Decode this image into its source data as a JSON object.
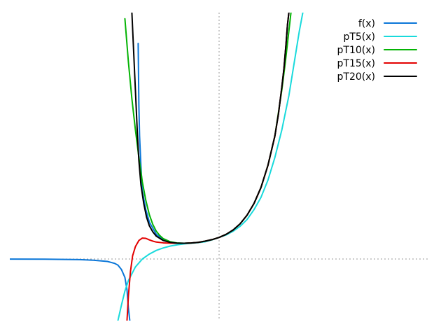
{
  "chart_data": {
    "type": "line",
    "title": "",
    "xlabel": "",
    "ylabel": "",
    "xlim": [
      -3,
      3
    ],
    "ylim": [
      -1,
      4
    ],
    "grid": false,
    "axes_style": "dotted-zero-lines",
    "legend_position": "top-right",
    "series": [
      {
        "name": "f(x)",
        "color": "#0a76d8",
        "points": [
          [
            -3.0,
            -0.001
          ],
          [
            -2.5,
            -0.003
          ],
          [
            -2.0,
            -0.01
          ],
          [
            -1.8,
            -0.02
          ],
          [
            -1.6,
            -0.04
          ],
          [
            -1.5,
            -0.07
          ],
          [
            -1.45,
            -0.1
          ],
          [
            -1.4,
            -0.17
          ],
          [
            -1.35,
            -0.3
          ],
          [
            -1.32,
            -0.5
          ],
          [
            -1.3,
            -0.8
          ],
          [
            -1.28,
            -1.0
          ]
        ]
      },
      {
        "name": "f(x)",
        "color": "#0a76d8",
        "points": [
          [
            -1.16,
            3.5
          ],
          [
            -1.15,
            2.5
          ],
          [
            -1.14,
            2.0
          ],
          [
            -1.12,
            1.5
          ],
          [
            -1.1,
            1.1
          ],
          [
            -1.05,
            0.8
          ],
          [
            -1.0,
            0.6
          ],
          [
            -0.9,
            0.4
          ],
          [
            -0.8,
            0.31
          ],
          [
            -0.7,
            0.27
          ],
          [
            -0.6,
            0.255
          ],
          [
            -0.5,
            0.255
          ],
          [
            -0.4,
            0.26
          ],
          [
            -0.3,
            0.27
          ],
          [
            -0.2,
            0.29
          ],
          [
            -0.1,
            0.315
          ],
          [
            0.0,
            0.35
          ],
          [
            0.1,
            0.4
          ],
          [
            0.2,
            0.47
          ],
          [
            0.3,
            0.57
          ],
          [
            0.4,
            0.71
          ],
          [
            0.5,
            0.9
          ],
          [
            0.6,
            1.16
          ],
          [
            0.7,
            1.52
          ],
          [
            0.8,
            2.0
          ],
          [
            0.85,
            2.35
          ],
          [
            0.9,
            2.8
          ],
          [
            0.93,
            3.1
          ],
          [
            0.96,
            3.5
          ],
          [
            0.98,
            3.8
          ],
          [
            1.0,
            4.0
          ]
        ]
      },
      {
        "name": "pT5(x)",
        "color": "#19dadc",
        "points": [
          [
            -1.45,
            -1.0
          ],
          [
            -1.4,
            -0.75
          ],
          [
            -1.35,
            -0.52
          ],
          [
            -1.3,
            -0.35
          ],
          [
            -1.2,
            -0.13
          ],
          [
            -1.1,
            0.0
          ],
          [
            -1.0,
            0.08
          ],
          [
            -0.9,
            0.14
          ],
          [
            -0.8,
            0.18
          ],
          [
            -0.7,
            0.21
          ],
          [
            -0.6,
            0.23
          ],
          [
            -0.5,
            0.245
          ],
          [
            -0.4,
            0.255
          ],
          [
            -0.3,
            0.265
          ],
          [
            -0.2,
            0.28
          ],
          [
            -0.1,
            0.31
          ],
          [
            0.0,
            0.35
          ],
          [
            0.1,
            0.39
          ],
          [
            0.2,
            0.45
          ],
          [
            0.3,
            0.53
          ],
          [
            0.4,
            0.64
          ],
          [
            0.5,
            0.8
          ],
          [
            0.6,
            1.0
          ],
          [
            0.7,
            1.28
          ],
          [
            0.8,
            1.65
          ],
          [
            0.9,
            2.1
          ],
          [
            1.0,
            2.65
          ],
          [
            1.05,
            3.0
          ],
          [
            1.1,
            3.35
          ],
          [
            1.15,
            3.7
          ],
          [
            1.2,
            4.0
          ]
        ]
      },
      {
        "name": "pT10(x)",
        "color": "#04b304",
        "points": [
          [
            -1.35,
            3.9
          ],
          [
            -1.3,
            3.2
          ],
          [
            -1.25,
            2.6
          ],
          [
            -1.2,
            2.1
          ],
          [
            -1.15,
            1.65
          ],
          [
            -1.1,
            1.25
          ],
          [
            -1.05,
            0.95
          ],
          [
            -1.0,
            0.72
          ],
          [
            -0.95,
            0.56
          ],
          [
            -0.9,
            0.45
          ],
          [
            -0.85,
            0.38
          ],
          [
            -0.8,
            0.33
          ],
          [
            -0.7,
            0.28
          ],
          [
            -0.6,
            0.26
          ],
          [
            -0.5,
            0.255
          ],
          [
            -0.4,
            0.26
          ],
          [
            -0.3,
            0.27
          ],
          [
            -0.2,
            0.29
          ],
          [
            -0.1,
            0.315
          ],
          [
            0.0,
            0.35
          ],
          [
            0.1,
            0.4
          ],
          [
            0.2,
            0.47
          ],
          [
            0.3,
            0.57
          ],
          [
            0.4,
            0.71
          ],
          [
            0.5,
            0.9
          ],
          [
            0.6,
            1.16
          ],
          [
            0.7,
            1.52
          ],
          [
            0.8,
            2.0
          ],
          [
            0.9,
            2.75
          ],
          [
            0.95,
            3.2
          ],
          [
            1.0,
            3.7
          ],
          [
            1.03,
            4.0
          ]
        ]
      },
      {
        "name": "pT15(x)",
        "color": "#e30000",
        "points": [
          [
            -1.32,
            -1.0
          ],
          [
            -1.3,
            -0.6
          ],
          [
            -1.27,
            -0.2
          ],
          [
            -1.24,
            0.05
          ],
          [
            -1.2,
            0.2
          ],
          [
            -1.15,
            0.3
          ],
          [
            -1.1,
            0.34
          ],
          [
            -1.05,
            0.335
          ],
          [
            -1.0,
            0.31
          ],
          [
            -0.95,
            0.29
          ],
          [
            -0.9,
            0.275
          ],
          [
            -0.8,
            0.262
          ],
          [
            -0.7,
            0.257
          ],
          [
            -0.6,
            0.255
          ],
          [
            -0.5,
            0.255
          ],
          [
            -0.4,
            0.26
          ],
          [
            -0.3,
            0.27
          ],
          [
            -0.2,
            0.29
          ],
          [
            -0.1,
            0.315
          ],
          [
            0.0,
            0.35
          ],
          [
            0.1,
            0.4
          ],
          [
            0.2,
            0.47
          ],
          [
            0.3,
            0.57
          ],
          [
            0.4,
            0.71
          ],
          [
            0.5,
            0.9
          ],
          [
            0.6,
            1.16
          ],
          [
            0.7,
            1.52
          ],
          [
            0.8,
            2.0
          ],
          [
            0.85,
            2.35
          ],
          [
            0.9,
            2.8
          ],
          [
            0.93,
            3.1
          ],
          [
            0.96,
            3.5
          ],
          [
            0.98,
            3.8
          ],
          [
            1.0,
            4.0
          ]
        ]
      },
      {
        "name": "pT20(x)",
        "color": "#000000",
        "points": [
          [
            -1.25,
            4.0
          ],
          [
            -1.23,
            3.5
          ],
          [
            -1.21,
            3.0
          ],
          [
            -1.19,
            2.5
          ],
          [
            -1.17,
            2.0
          ],
          [
            -1.15,
            1.6
          ],
          [
            -1.12,
            1.2
          ],
          [
            -1.08,
            0.9
          ],
          [
            -1.04,
            0.68
          ],
          [
            -1.0,
            0.54
          ],
          [
            -0.95,
            0.44
          ],
          [
            -0.9,
            0.37
          ],
          [
            -0.8,
            0.3
          ],
          [
            -0.7,
            0.27
          ],
          [
            -0.6,
            0.257
          ],
          [
            -0.5,
            0.255
          ],
          [
            -0.4,
            0.26
          ],
          [
            -0.3,
            0.27
          ],
          [
            -0.2,
            0.29
          ],
          [
            -0.1,
            0.315
          ],
          [
            0.0,
            0.35
          ],
          [
            0.1,
            0.4
          ],
          [
            0.2,
            0.47
          ],
          [
            0.3,
            0.57
          ],
          [
            0.4,
            0.71
          ],
          [
            0.5,
            0.9
          ],
          [
            0.6,
            1.16
          ],
          [
            0.7,
            1.52
          ],
          [
            0.8,
            2.0
          ],
          [
            0.85,
            2.35
          ],
          [
            0.9,
            2.8
          ],
          [
            0.93,
            3.1
          ],
          [
            0.96,
            3.5
          ],
          [
            0.98,
            3.8
          ],
          [
            1.0,
            4.0
          ]
        ]
      }
    ],
    "legend": [
      {
        "label": "f(x)",
        "color": "#0a76d8"
      },
      {
        "label": "pT5(x)",
        "color": "#19dadc"
      },
      {
        "label": "pT10(x)",
        "color": "#04b304"
      },
      {
        "label": "pT15(x)",
        "color": "#e30000"
      },
      {
        "label": "pT20(x)",
        "color": "#000000"
      }
    ]
  }
}
